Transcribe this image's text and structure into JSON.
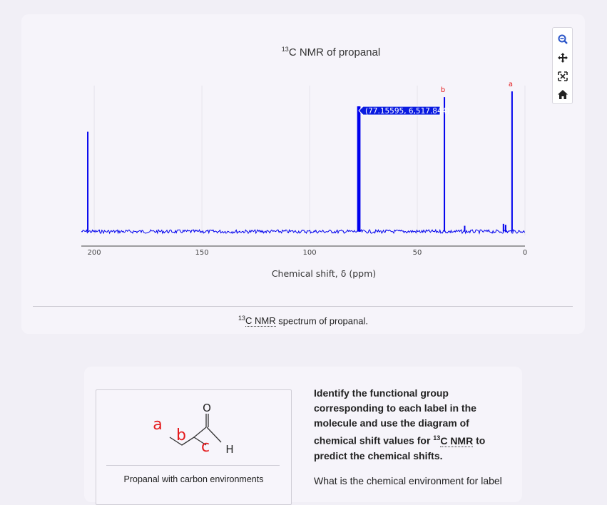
{
  "chart_card": {
    "title_sup": "13",
    "title_main": "C NMR of propanal",
    "xlabel": "Chemical shift, δ (ppm)",
    "caption_sup": "13",
    "caption_abbr": "C NMR",
    "caption_rest": " spectrum of propanal.",
    "hover_label": "(77.15595, 6,517.844)",
    "peak_labels": [
      "b",
      "a"
    ]
  },
  "modebar": {
    "buttons": [
      "zoom-icon",
      "pan-icon",
      "autoscale-icon",
      "home-icon"
    ]
  },
  "chart_data": {
    "type": "line",
    "title": "13C NMR of propanal",
    "xlabel": "Chemical shift, δ (ppm)",
    "ylabel": "",
    "xlim": [
      206,
      0
    ],
    "ylim": [
      -200,
      7600
    ],
    "x_ticks": [
      "200",
      "150",
      "100",
      "50",
      "0"
    ],
    "reversed_x": true,
    "grid": true,
    "series": [
      {
        "color": "#0000ee",
        "peaks": [
          {
            "x": 203.0,
            "y": 5200
          },
          {
            "x": 77.6,
            "y": 6517
          },
          {
            "x": 77.16,
            "y": 6517.844
          },
          {
            "x": 76.7,
            "y": 6517
          },
          {
            "x": 37.4,
            "y": 7000,
            "label": "b"
          },
          {
            "x": 6.0,
            "y": 7300,
            "label": "a"
          },
          {
            "x": 28.0,
            "y": 300
          },
          {
            "x": 10.0,
            "y": 400
          },
          {
            "x": 9.0,
            "y": 350
          }
        ]
      }
    ],
    "hover": {
      "x": 77.15595,
      "y": 6517.844
    }
  },
  "question_card": {
    "mol_labels": {
      "a": "a",
      "b": "b",
      "c": "c",
      "o": "O",
      "h": "H"
    },
    "mol_caption": "Propanal with carbon environments",
    "q_line1": "Identify the functional group",
    "q_line2": "corresponding to each label in the",
    "q_line3": "molecule and use the diagram of",
    "q_line4_pre": "chemical shift values for ",
    "q_line4_sup": "13",
    "q_line4_abbr": "C NMR",
    "q_line4_post": " to",
    "q_line5": "predict the chemical shifts.",
    "sub_question": "What is the chemical environment for label"
  }
}
